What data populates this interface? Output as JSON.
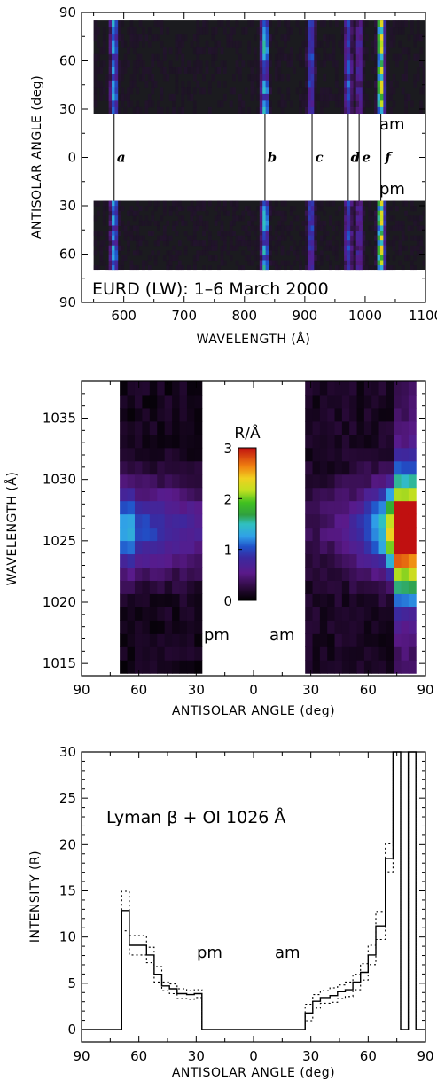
{
  "chart_data": [
    {
      "type": "heatmap",
      "title": "",
      "annotation": "EURD (LW): 1–6 March 2000",
      "xlabel": "WAVELENGTH (Å)",
      "ylabel": "ANTISOLAR ANGLE (deg)",
      "xlim": [
        530,
        1100
      ],
      "ylim_label_order": [
        "90",
        "60",
        "30",
        "0",
        "30",
        "60",
        "90"
      ],
      "xticks": [
        600,
        700,
        800,
        900,
        1000,
        1100
      ],
      "yticks": [
        {
          "v": 90,
          "label": "90"
        },
        {
          "v": 60,
          "label": "60"
        },
        {
          "v": 30,
          "label": "30"
        },
        {
          "v": 0,
          "label": "0"
        },
        {
          "v": -30,
          "label": "30"
        },
        {
          "v": -60,
          "label": "60"
        },
        {
          "v": -90,
          "label": "90"
        }
      ],
      "am_label": "am",
      "pm_label": "pm",
      "am_band": [
        27,
        85
      ],
      "pm_band": [
        -70,
        -27
      ],
      "data_x_range": [
        550,
        1100
      ],
      "bright_lines": [
        {
          "x": 584,
          "strength": 0.55
        },
        {
          "x": 834,
          "strength": 0.6
        },
        {
          "x": 910,
          "strength": 0.45
        },
        {
          "x": 972,
          "strength": 0.4
        },
        {
          "x": 990,
          "strength": 0.3
        },
        {
          "x": 1026,
          "strength": 1.0
        }
      ],
      "line_markers": [
        {
          "label": "a",
          "x": 584
        },
        {
          "label": "b",
          "x": 834
        },
        {
          "label": "c",
          "x": 912
        },
        {
          "label": "d",
          "x": 972
        },
        {
          "label": "e",
          "x": 990
        },
        {
          "label": "f",
          "x": 1026
        }
      ]
    },
    {
      "type": "heatmap",
      "title": "",
      "xlabel": "ANTISOLAR ANGLE (deg)",
      "ylabel": "WAVELENGTH (Å)",
      "x_axis": "antisolar angle, pm on left (90→30), am on right (30→90)",
      "xticks": [
        {
          "v": -90,
          "label": "90"
        },
        {
          "v": -60,
          "label": "60"
        },
        {
          "v": -30,
          "label": "30"
        },
        {
          "v": 0,
          "label": "0"
        },
        {
          "v": 30,
          "label": "30"
        },
        {
          "v": 60,
          "label": "60"
        },
        {
          "v": 90,
          "label": "90"
        }
      ],
      "xlim": [
        -90,
        90
      ],
      "ylim": [
        1014,
        1038
      ],
      "yticks": [
        1015,
        1020,
        1025,
        1030,
        1035
      ],
      "pm_label": "pm",
      "am_label": "am",
      "pm_range": [
        -70,
        -27
      ],
      "am_range": [
        27,
        85
      ],
      "wavelength_range": [
        1014.2,
        1038
      ],
      "colorbar": {
        "label": "R/Å",
        "ticks": [
          0,
          1,
          2,
          3
        ],
        "range": [
          0,
          3
        ]
      }
    },
    {
      "type": "line",
      "title": "",
      "annotation": "Lyman β + OI 1026 Å",
      "xlabel": "ANTISOLAR ANGLE (deg)",
      "ylabel": "INTENSITY (R)",
      "xlim": [
        -90,
        90
      ],
      "ylim": [
        0,
        30
      ],
      "xticks": [
        {
          "v": -90,
          "label": "90"
        },
        {
          "v": -60,
          "label": "60"
        },
        {
          "v": -30,
          "label": "30"
        },
        {
          "v": 0,
          "label": "0"
        },
        {
          "v": 30,
          "label": "30"
        },
        {
          "v": 60,
          "label": "60"
        },
        {
          "v": 90,
          "label": "90"
        }
      ],
      "yticks": [
        0,
        5,
        10,
        15,
        20,
        25,
        30
      ],
      "pm_label": "pm",
      "am_label": "am",
      "series": [
        {
          "style": "solid",
          "bins": [
            [
              -90,
              -69,
              0
            ],
            [
              -69,
              -65,
              13.6
            ],
            [
              -65,
              -56,
              10.0
            ],
            [
              -56,
              -52,
              9.0
            ],
            [
              -52,
              -48,
              7.0
            ],
            [
              -48,
              -44,
              5.8
            ],
            [
              -44,
              -40,
              5.5
            ],
            [
              -40,
              -35,
              5.0
            ],
            [
              -35,
              -31,
              4.9
            ],
            [
              -31,
              -27,
              5.0
            ],
            [
              -27,
              27,
              0
            ],
            [
              27,
              31,
              3.0
            ],
            [
              31,
              35,
              4.2
            ],
            [
              35,
              40,
              4.6
            ],
            [
              40,
              44,
              4.8
            ],
            [
              44,
              48,
              5.2
            ],
            [
              48,
              52,
              5.4
            ],
            [
              52,
              56,
              6.2
            ],
            [
              56,
              60,
              7.2
            ],
            [
              60,
              64,
              9.0
            ],
            [
              64,
              69,
              12.0
            ],
            [
              69,
              73,
              19.0
            ],
            [
              73,
              77,
              32
            ],
            [
              77,
              81,
              0
            ],
            [
              81,
              85,
              32
            ],
            [
              85,
              90,
              0
            ]
          ]
        },
        {
          "style": "dotted",
          "bins": [
            [
              -90,
              -69,
              0
            ],
            [
              -69,
              -65,
              15.6
            ],
            [
              -65,
              -56,
              11.0
            ],
            [
              -56,
              -52,
              9.8
            ],
            [
              -52,
              -48,
              7.8
            ],
            [
              -48,
              -44,
              6.2
            ],
            [
              -44,
              -40,
              6.0
            ],
            [
              -40,
              -35,
              5.5
            ],
            [
              -35,
              -31,
              5.3
            ],
            [
              -31,
              -27,
              5.4
            ],
            [
              -27,
              27,
              0
            ],
            [
              27,
              31,
              3.9
            ],
            [
              31,
              35,
              4.9
            ],
            [
              35,
              40,
              5.3
            ],
            [
              40,
              44,
              5.6
            ],
            [
              44,
              48,
              5.9
            ],
            [
              48,
              52,
              6.2
            ],
            [
              52,
              56,
              7.0
            ],
            [
              56,
              60,
              8.1
            ],
            [
              60,
              64,
              10.0
            ],
            [
              64,
              69,
              13.5
            ],
            [
              69,
              73,
              20.5
            ],
            [
              73,
              77,
              32
            ],
            [
              77,
              81,
              0
            ],
            [
              81,
              85,
              32
            ],
            [
              85,
              90,
              0
            ]
          ]
        },
        {
          "style": "dotted",
          "bins": [
            [
              -90,
              -69,
              0
            ],
            [
              -69,
              -65,
              11.5
            ],
            [
              -65,
              -56,
              9.0
            ],
            [
              -56,
              -52,
              8.2
            ],
            [
              -52,
              -48,
              6.2
            ],
            [
              -48,
              -44,
              5.3
            ],
            [
              -44,
              -40,
              5.0
            ],
            [
              -40,
              -35,
              4.5
            ],
            [
              -35,
              -31,
              4.4
            ],
            [
              -31,
              -27,
              4.6
            ],
            [
              -27,
              27,
              0
            ],
            [
              27,
              31,
              2.2
            ],
            [
              31,
              35,
              3.5
            ],
            [
              35,
              40,
              4.0
            ],
            [
              40,
              44,
              4.1
            ],
            [
              44,
              48,
              4.5
            ],
            [
              48,
              52,
              4.7
            ],
            [
              52,
              56,
              5.4
            ],
            [
              56,
              60,
              6.4
            ],
            [
              60,
              64,
              8.0
            ],
            [
              64,
              69,
              10.6
            ],
            [
              69,
              73,
              17.6
            ],
            [
              73,
              77,
              32
            ],
            [
              77,
              81,
              0
            ],
            [
              81,
              85,
              32
            ],
            [
              85,
              90,
              0
            ]
          ]
        }
      ]
    }
  ]
}
